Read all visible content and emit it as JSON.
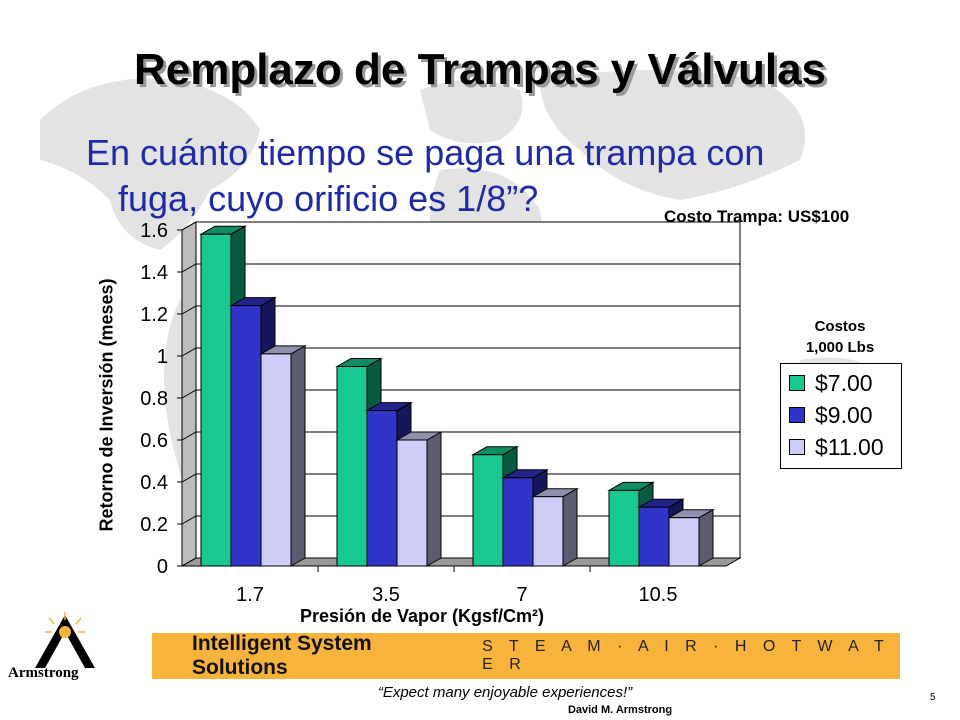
{
  "slide": {
    "title": "Remplazo de Trampas y Válvulas",
    "subtitle_line1": "En cuánto tiempo se paga una trampa con",
    "subtitle_line2": "fuga, cuyo orificio es 1/8”?",
    "cost_label": "Costo Trampa: US$100",
    "legend_title_line1": "Costos",
    "legend_title_line2": "1,000 Lbs",
    "banner_main": "Intelligent System Solutions",
    "banner_sub": "S T E A M · A I R · H O T  W A T E R",
    "logo_text": "Armstrong",
    "tagline": "“Expect many enjoyable experiences!”",
    "author": "David M. Armstrong",
    "page_number": "5"
  },
  "colors": {
    "series1": "#17c890",
    "series2": "#3134c8",
    "series3": "#cdcdf8",
    "banner": "#f7b33b",
    "subtitle": "#1f2ba6"
  },
  "chart_data": {
    "type": "bar",
    "title": "",
    "xlabel": "Presión de Vapor (Kgsf/Cm²)",
    "ylabel": "Retorno de Inversión (meses)",
    "categories": [
      "1.7",
      "3.5",
      "7",
      "10.5"
    ],
    "series": [
      {
        "name": "$7.00",
        "values": [
          1.58,
          0.95,
          0.53,
          0.36
        ]
      },
      {
        "name": "$9.00",
        "values": [
          1.24,
          0.74,
          0.42,
          0.28
        ]
      },
      {
        "name": "$11.00",
        "values": [
          1.01,
          0.6,
          0.33,
          0.23
        ]
      }
    ],
    "ylim": [
      0,
      1.6
    ],
    "yticks": [
      "0",
      "0.2",
      "0.4",
      "0.6",
      "0.8",
      "1",
      "1.2",
      "1.4",
      "1.6"
    ],
    "grid": true,
    "style": "3d-clustered",
    "legend_position": "right"
  }
}
